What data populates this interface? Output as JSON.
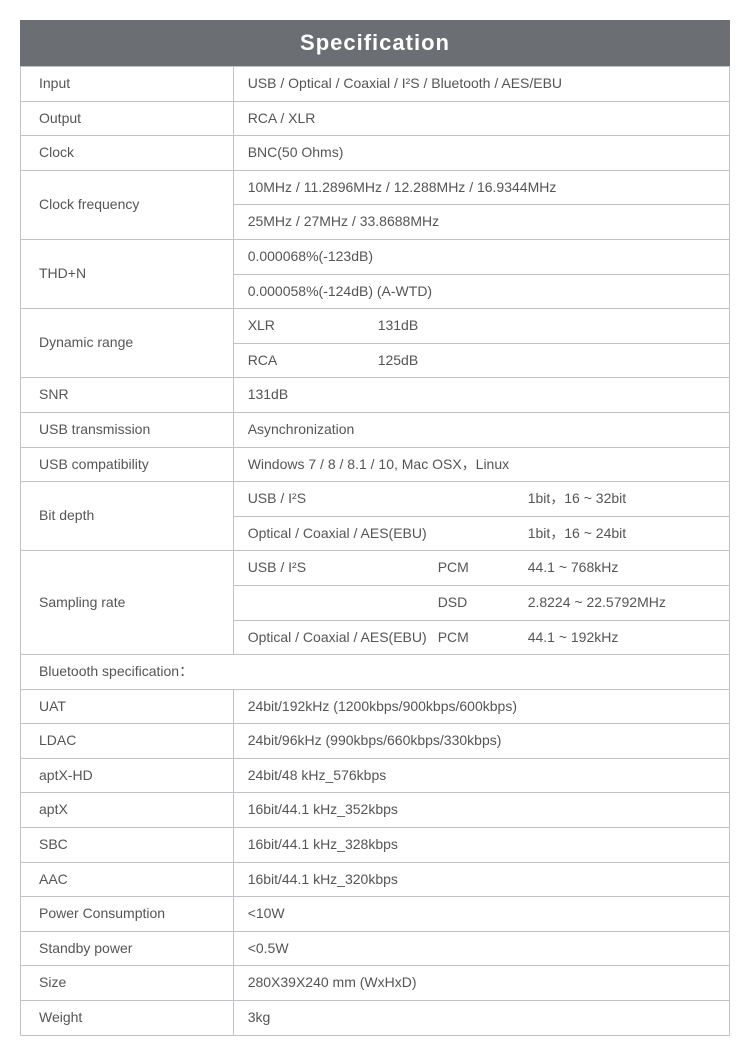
{
  "header": {
    "title": "Specification"
  },
  "style": {
    "header_bg": "#6b6e73",
    "header_color": "#ffffff",
    "header_fontsize": 22,
    "border_color": "#bfc2c6",
    "text_color": "#555555",
    "row_fontsize": 14,
    "label_col_width_pct": 30
  },
  "rows": {
    "input": {
      "label": "Input",
      "value": "USB / Optical / Coaxial / I²S / Bluetooth / AES/EBU"
    },
    "output": {
      "label": "Output",
      "value": "RCA / XLR"
    },
    "clock": {
      "label": "Clock",
      "value": "BNC(50 Ohms)"
    },
    "clock_freq": {
      "label": "Clock frequency",
      "line1": "10MHz / 11.2896MHz / 12.288MHz / 16.9344MHz",
      "line2": "25MHz / 27MHz / 33.8688MHz"
    },
    "thdn": {
      "label": "THD+N",
      "line1": "0.000068%(-123dB)",
      "line2": "0.000058%(-124dB) (A-WTD)"
    },
    "dynamic_range": {
      "label": "Dynamic range",
      "line1_a": "XLR",
      "line1_b": "131dB",
      "line2_a": "RCA",
      "line2_b": "125dB"
    },
    "snr": {
      "label": "SNR",
      "value": "131dB"
    },
    "usb_trans": {
      "label": "USB transmission",
      "value": "Asynchronization"
    },
    "usb_compat": {
      "label": "USB compatibility",
      "value": "Windows 7 / 8 / 8.1 / 10, Mac OSX，Linux"
    },
    "bit_depth": {
      "label": "Bit depth",
      "line1_a": "USB / I²S",
      "line1_b": "",
      "line1_c": "1bit，16 ~ 32bit",
      "line2_a": "Optical / Coaxial / AES(EBU)",
      "line2_b": "",
      "line2_c": "1bit，16 ~ 24bit"
    },
    "sampling_rate": {
      "label": "Sampling rate",
      "line1_a": "USB / I²S",
      "line1_b": "PCM",
      "line1_c": "44.1 ~ 768kHz",
      "line2_a": "",
      "line2_b": "DSD",
      "line2_c": "2.8224 ~ 22.5792MHz",
      "line3_a": "Optical / Coaxial / AES(EBU)",
      "line3_b": "PCM",
      "line3_c": "44.1 ~ 192kHz"
    },
    "bt_spec": {
      "label": "Bluetooth specification："
    },
    "uat": {
      "label": "UAT",
      "value": "24bit/192kHz (1200kbps/900kbps/600kbps)"
    },
    "ldac": {
      "label": "LDAC",
      "value": "24bit/96kHz (990kbps/660kbps/330kbps)"
    },
    "aptx_hd": {
      "label": "aptX-HD",
      "value": "24bit/48 kHz_576kbps"
    },
    "aptx": {
      "label": "aptX",
      "value": "16bit/44.1 kHz_352kbps"
    },
    "sbc": {
      "label": "SBC",
      "value": "16bit/44.1 kHz_328kbps"
    },
    "aac": {
      "label": "AAC",
      "value": "16bit/44.1 kHz_320kbps"
    },
    "power": {
      "label": "Power Consumption",
      "value": "<10W"
    },
    "standby": {
      "label": "Standby power",
      "value": "<0.5W"
    },
    "size": {
      "label": "Size",
      "value": "280X39X240 mm (WxHxD)"
    },
    "weight": {
      "label": "Weight",
      "value": "3kg"
    }
  }
}
